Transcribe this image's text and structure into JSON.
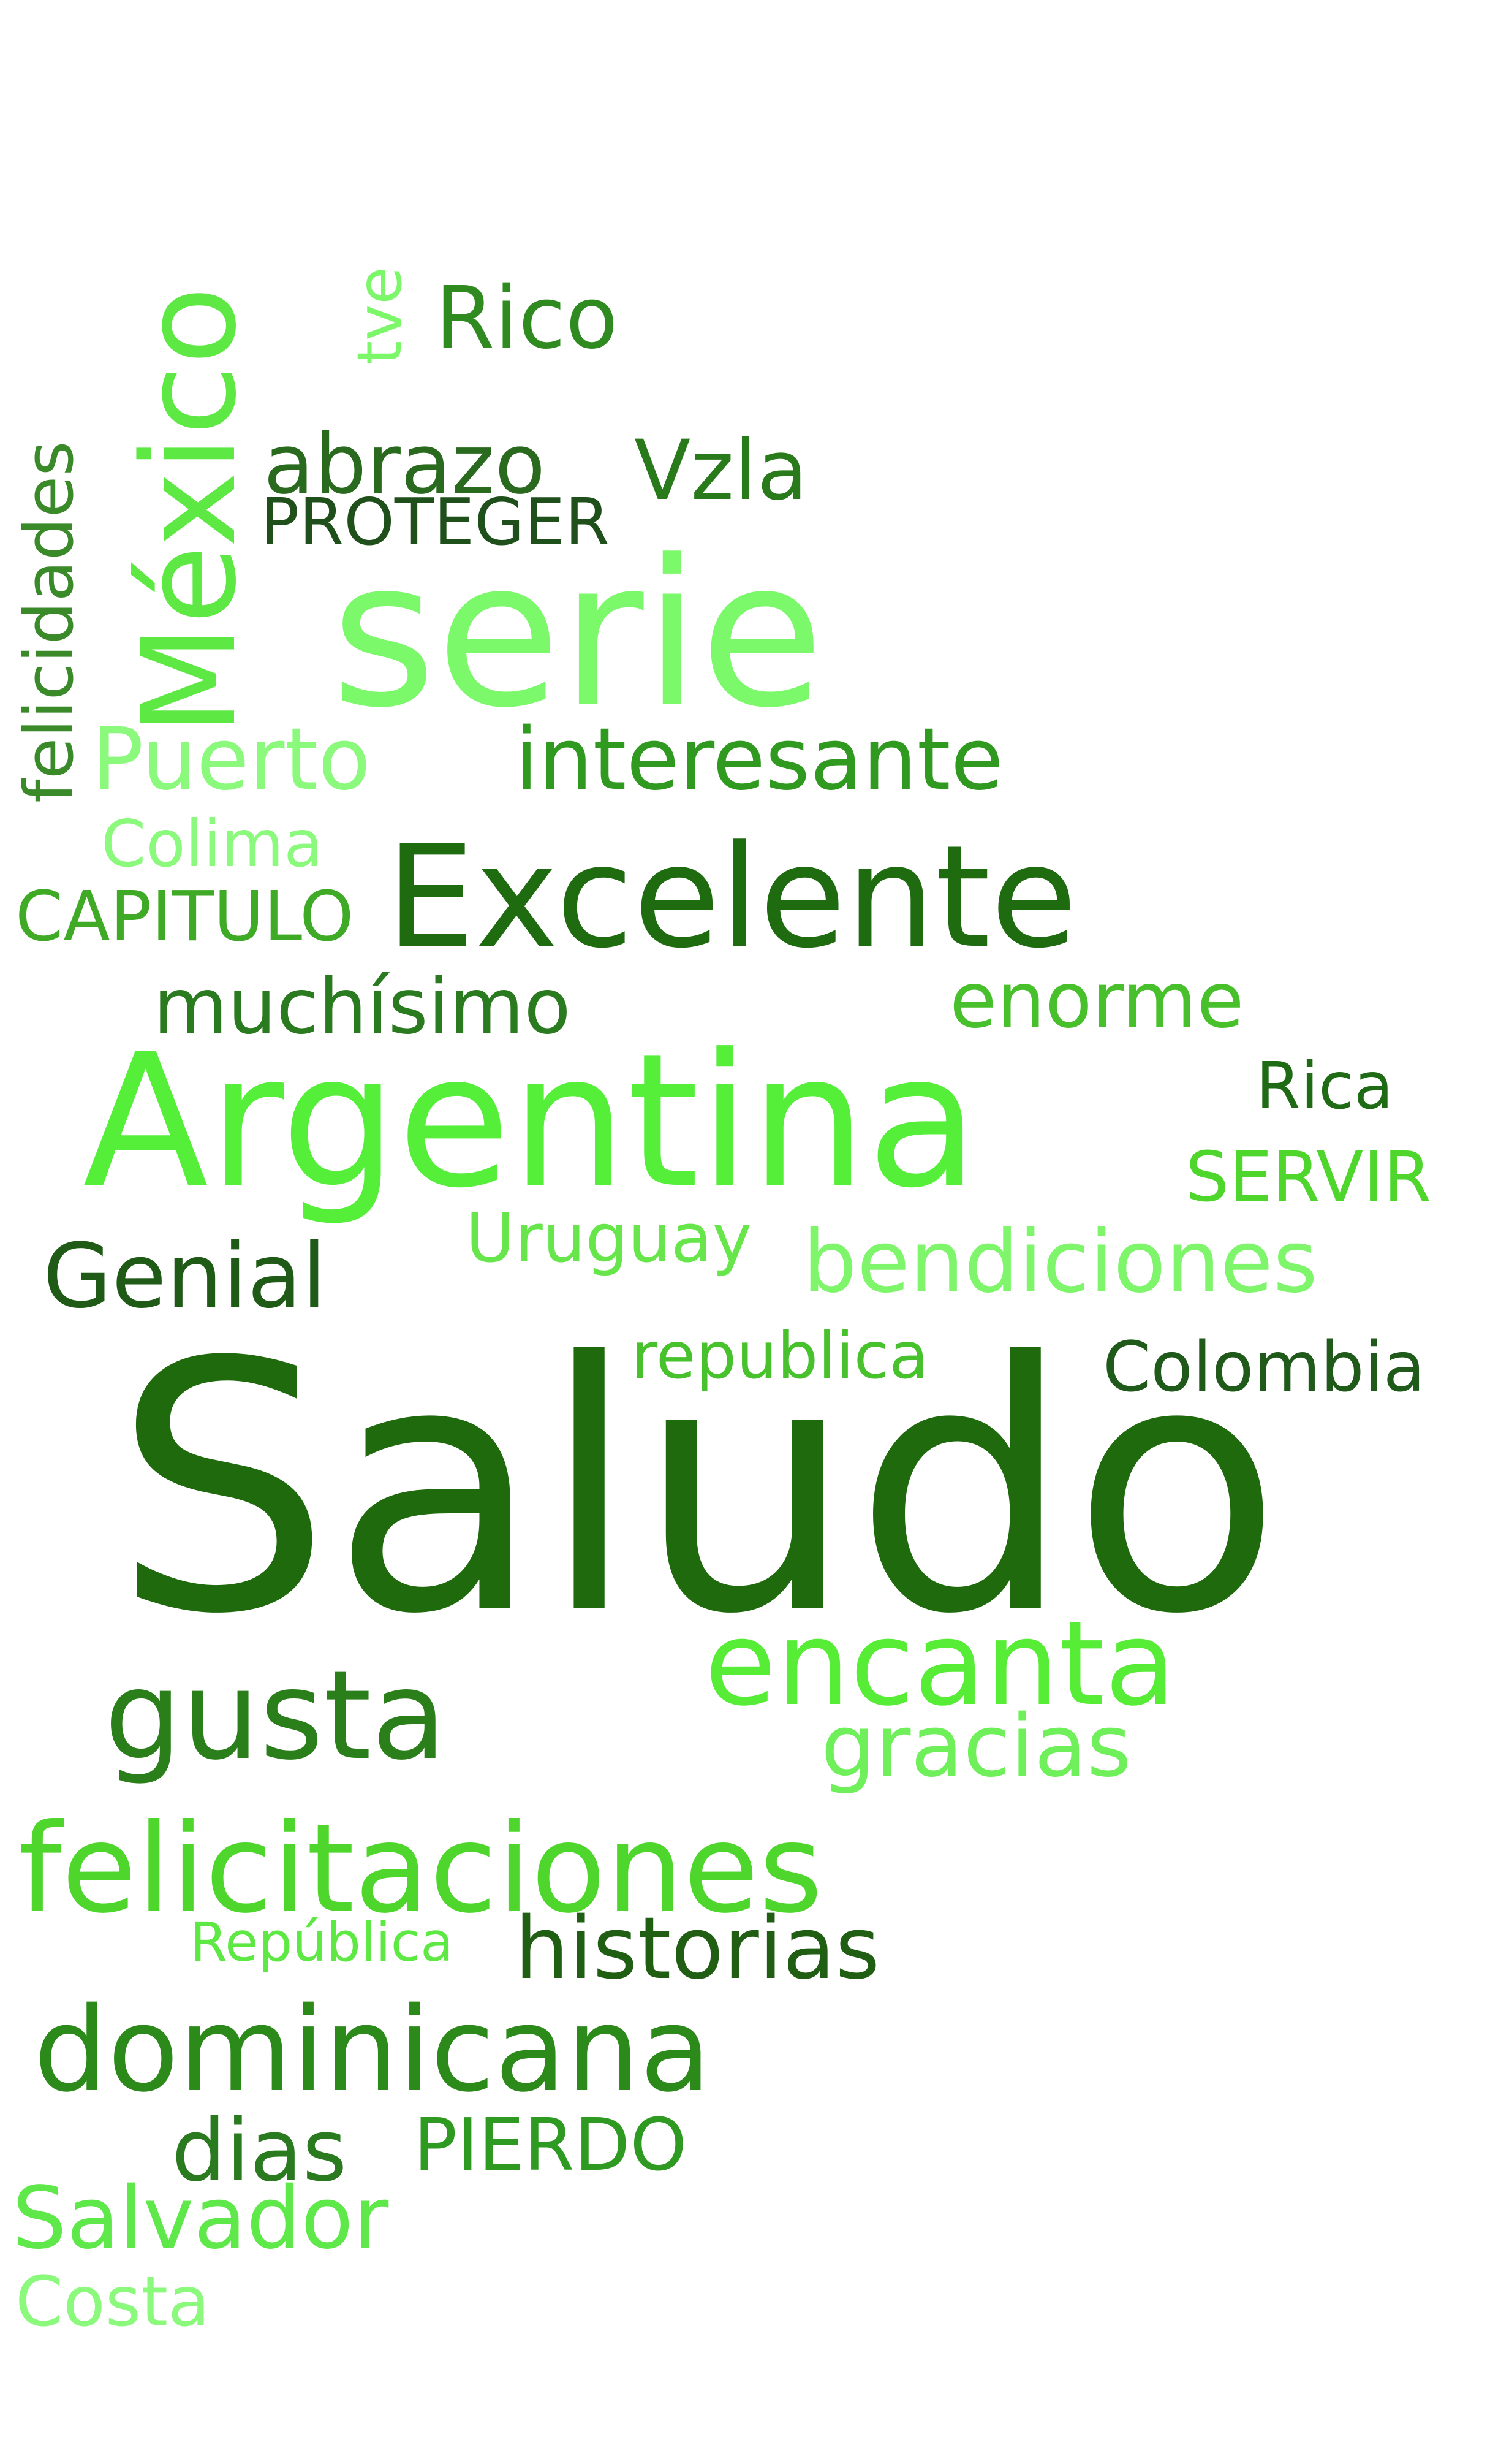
{
  "colors": {
    "background": "#ffffff",
    "dark_green": "#1e6b0e",
    "mid_dark_green": "#2d8a1c",
    "mid_green": "#3faf25",
    "bright_green": "#4fd62c",
    "light_green": "#7cf76a",
    "pale_green": "#8af97c"
  },
  "words": [
    {
      "text": "Saludo",
      "color": "#1f6a0d"
    },
    {
      "text": "Argentina",
      "color": "#55ef3a"
    },
    {
      "text": "serie",
      "color": "#7bf96a"
    },
    {
      "text": "México",
      "color": "#5ee843"
    },
    {
      "text": "Excelente",
      "color": "#1e6b10"
    },
    {
      "text": "gusta",
      "color": "#2a7f1a"
    },
    {
      "text": "encanta",
      "color": "#57ec36"
    },
    {
      "text": "felicitaciones",
      "color": "#4fd62c"
    },
    {
      "text": "dominicana",
      "color": "#2c8a1a"
    },
    {
      "text": "bendiciones",
      "color": "#7ef56a"
    },
    {
      "text": "interesante",
      "color": "#2f9a1f"
    },
    {
      "text": "Puerto",
      "color": "#8af97c"
    },
    {
      "text": "gracias",
      "color": "#6ff05a"
    },
    {
      "text": "historias",
      "color": "#1f5e13"
    },
    {
      "text": "Salvador",
      "color": "#5ee849"
    },
    {
      "text": "Genial",
      "color": "#1f5a16"
    },
    {
      "text": "muchísimo",
      "color": "#2a7a1f"
    },
    {
      "text": "enorme",
      "color": "#47c02c"
    },
    {
      "text": "abrazo",
      "color": "#2a6a1f"
    },
    {
      "text": "Vzla",
      "color": "#287a1a"
    },
    {
      "text": "Rico",
      "color": "#2f8a20"
    },
    {
      "text": "PROTEGER",
      "color": "#1f4f1a"
    },
    {
      "text": "felicidades",
      "color": "#3a8a2a"
    },
    {
      "text": "tve",
      "color": "#7cf76a"
    },
    {
      "text": "Colima",
      "color": "#8af97c"
    },
    {
      "text": "CAPITULO",
      "color": "#3faa25"
    },
    {
      "text": "Rica",
      "color": "#1f6a14"
    },
    {
      "text": "SERVIR",
      "color": "#4fd62c"
    },
    {
      "text": "Uruguay",
      "color": "#67e64c"
    },
    {
      "text": "republica",
      "color": "#48c22c"
    },
    {
      "text": "Colombia",
      "color": "#1f5a1a"
    },
    {
      "text": "República",
      "color": "#5ee843"
    },
    {
      "text": "dias",
      "color": "#2a7a1f"
    },
    {
      "text": "PIERDO",
      "color": "#2f9a22"
    },
    {
      "text": "Costa",
      "color": "#8af97c"
    }
  ]
}
